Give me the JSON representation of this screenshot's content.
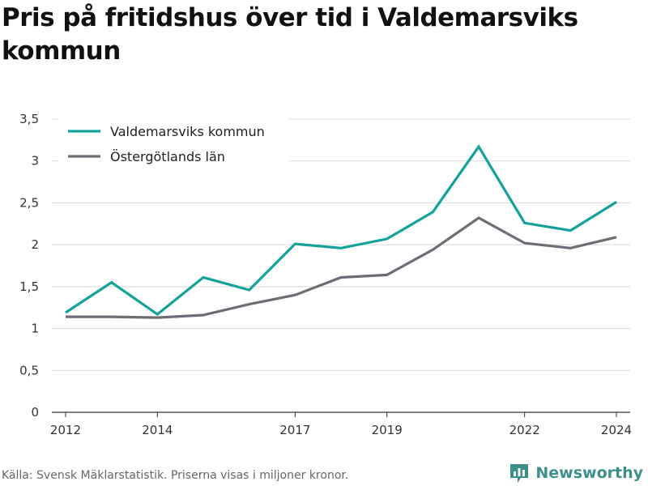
{
  "title": "Pris på fritidshus över tid i Valdemarsviks kommun",
  "source": "Källa: Svensk Mäklarstatistik. Priserna visas i miljoner kronor.",
  "brand": "Newsworthy",
  "colors": {
    "teal": "#13a29a",
    "gray": "#6d6d75",
    "grid": "#d9d9d9",
    "brand": "#3d8f8a"
  },
  "chart_data": {
    "type": "line",
    "title": "Pris på fritidshus över tid i Valdemarsviks kommun",
    "x": [
      2012,
      2013,
      2014,
      2015,
      2016,
      2017,
      2018,
      2019,
      2020,
      2021,
      2022,
      2023,
      2024
    ],
    "xticks": [
      2012,
      2014,
      2017,
      2019,
      2022,
      2024
    ],
    "xtick_labels": [
      "2012",
      "2014",
      "2017",
      "2019",
      "2022",
      "2024"
    ],
    "yticks": [
      0,
      0.5,
      1,
      1.5,
      2,
      2.5,
      3,
      3.5
    ],
    "ytick_labels": [
      "0",
      "0,5",
      "1",
      "1,5",
      "2",
      "2,5",
      "3",
      "3,5"
    ],
    "ylim": [
      0,
      3.5
    ],
    "xlim": [
      2011.7,
      2024.3
    ],
    "grid": true,
    "legend_position": "top-left",
    "series": [
      {
        "name": "Valdemarsviks kommun",
        "color": "#13a29a",
        "values": [
          1.19,
          1.55,
          1.17,
          1.61,
          1.46,
          2.01,
          1.96,
          2.07,
          2.39,
          3.17,
          2.26,
          2.17,
          2.51
        ]
      },
      {
        "name": "Östergötlands län",
        "color": "#6d6d75",
        "values": [
          1.14,
          1.14,
          1.13,
          1.16,
          1.29,
          1.4,
          1.61,
          1.64,
          1.94,
          2.32,
          2.02,
          1.96,
          2.09
        ]
      }
    ]
  }
}
